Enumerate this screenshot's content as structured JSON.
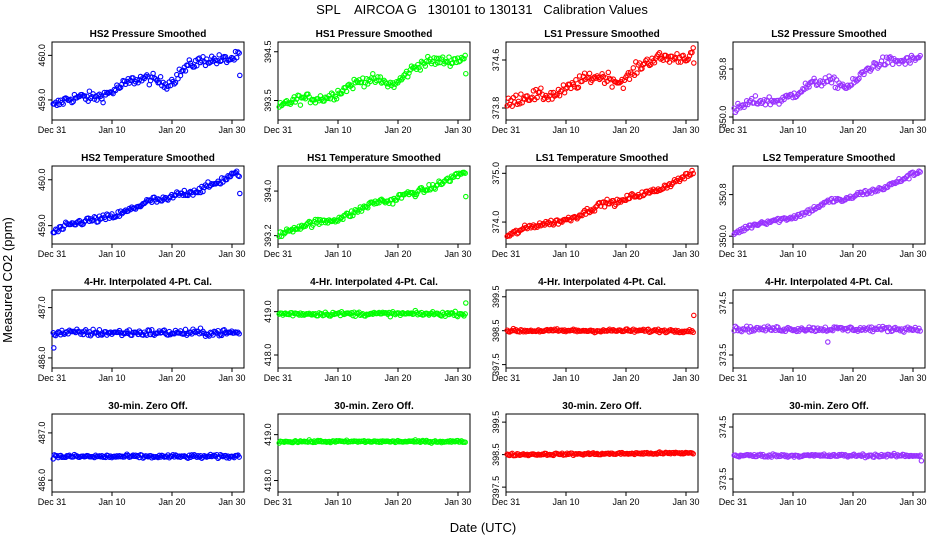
{
  "figure": {
    "title": "SPL    AIRCOA G   130101 to 130131   Calibration Values",
    "xlabel": "Date (UTC)",
    "ylabel": "Measured CO2 (ppm)"
  },
  "chart_data": [
    {
      "type": "scatter",
      "title": "HS2 Pressure Smoothed",
      "color": "#0000ff",
      "start": 458.85,
      "end": 460.05,
      "noise": 0.12,
      "ylim": [
        458.55,
        460.3
      ],
      "yticks": [
        "459.0",
        "460.0"
      ],
      "ytickvals": [
        459.0,
        460.0
      ],
      "xticks": [
        "Dec 31",
        "Jan 10",
        "Jan 20",
        "Jan 30"
      ],
      "xtickvals": [
        0,
        10,
        20,
        30
      ],
      "xlim": [
        0,
        32
      ],
      "shape": "pressure",
      "outliers": [
        [
          31.3,
          459.55
        ]
      ]
    },
    {
      "type": "scatter",
      "title": "HS1 Pressure Smoothed",
      "color": "#00ff00",
      "start": 393.35,
      "end": 394.45,
      "noise": 0.1,
      "ylim": [
        393.1,
        394.7
      ],
      "yticks": [
        "393.5",
        "394.5"
      ],
      "ytickvals": [
        393.5,
        394.5
      ],
      "xticks": [
        "Dec 31",
        "Jan 10",
        "Jan 20",
        "Jan 30"
      ],
      "xtickvals": [
        0,
        10,
        20,
        30
      ],
      "xlim": [
        0,
        32
      ],
      "shape": "pressure",
      "outliers": [
        [
          31.3,
          394.05
        ]
      ]
    },
    {
      "type": "scatter",
      "title": "LS1 Pressure Smoothed",
      "color": "#ff0000",
      "start": 373.85,
      "end": 374.75,
      "noise": 0.1,
      "ylim": [
        373.6,
        374.9
      ],
      "yticks": [
        "373.8",
        "374.6"
      ],
      "ytickvals": [
        373.8,
        374.6
      ],
      "xticks": [
        "Dec 31",
        "Jan 10",
        "Jan 20",
        "Jan 30"
      ],
      "xtickvals": [
        0,
        10,
        20,
        30
      ],
      "xlim": [
        0,
        32
      ],
      "shape": "pressure",
      "outliers": [
        [
          31.3,
          374.55
        ]
      ]
    },
    {
      "type": "scatter",
      "title": "LS2 Pressure Smoothed",
      "color": "#9933ff",
      "start": 350.1,
      "end": 351.05,
      "noise": 0.08,
      "ylim": [
        349.95,
        351.25
      ],
      "yticks": [
        "350.0",
        "350.8"
      ],
      "ytickvals": [
        350.0,
        350.8
      ],
      "xticks": [
        "Dec 31",
        "Jan 10",
        "Jan 20",
        "Jan 30"
      ],
      "xtickvals": [
        0,
        10,
        20,
        30
      ],
      "xlim": [
        0,
        32
      ],
      "shape": "pressure",
      "outliers": []
    },
    {
      "type": "scatter",
      "title": "HS2 Temperature Smoothed",
      "color": "#0000ff",
      "start": 458.85,
      "end": 460.1,
      "noise": 0.08,
      "ylim": [
        458.6,
        460.3
      ],
      "yticks": [
        "459.0",
        "460.0"
      ],
      "ytickvals": [
        459.0,
        460.0
      ],
      "xticks": [
        "Dec 31",
        "Jan 10",
        "Jan 20",
        "Jan 30"
      ],
      "xtickvals": [
        0,
        10,
        20,
        30
      ],
      "xlim": [
        0,
        32
      ],
      "shape": "temp",
      "outliers": [
        [
          31.3,
          459.7
        ]
      ]
    },
    {
      "type": "scatter",
      "title": "HS1 Temperature Smoothed",
      "color": "#00ff00",
      "start": 393.2,
      "end": 394.3,
      "noise": 0.06,
      "ylim": [
        393.05,
        394.45
      ],
      "yticks": [
        "393.2",
        "394.0"
      ],
      "ytickvals": [
        393.2,
        394.0
      ],
      "xticks": [
        "Dec 31",
        "Jan 10",
        "Jan 20",
        "Jan 30"
      ],
      "xtickvals": [
        0,
        10,
        20,
        30
      ],
      "xlim": [
        0,
        32
      ],
      "shape": "temp",
      "outliers": [
        [
          31.3,
          393.9
        ]
      ]
    },
    {
      "type": "scatter",
      "title": "LS1 Temperature Smoothed",
      "color": "#ff0000",
      "start": 373.7,
      "end": 374.95,
      "noise": 0.06,
      "ylim": [
        373.55,
        375.15
      ],
      "yticks": [
        "374.0",
        "375.0"
      ],
      "ytickvals": [
        374.0,
        375.0
      ],
      "xticks": [
        "Dec 31",
        "Jan 10",
        "Jan 20",
        "Jan 30"
      ],
      "xtickvals": [
        0,
        10,
        20,
        30
      ],
      "xlim": [
        0,
        32
      ],
      "shape": "temp",
      "outliers": []
    },
    {
      "type": "scatter",
      "title": "LS2 Temperature Smoothed",
      "color": "#9933ff",
      "start": 350.05,
      "end": 351.2,
      "noise": 0.05,
      "ylim": [
        349.85,
        351.35
      ],
      "yticks": [
        "350.0",
        "350.8"
      ],
      "ytickvals": [
        350.0,
        350.8
      ],
      "xticks": [
        "Dec 31",
        "Jan 10",
        "Jan 20",
        "Jan 30"
      ],
      "xtickvals": [
        0,
        10,
        20,
        30
      ],
      "xlim": [
        0,
        32
      ],
      "shape": "temp",
      "outliers": []
    },
    {
      "type": "scatter",
      "title": "4-Hr. Interpolated 4-Pt. Cal.",
      "color": "#0000ff",
      "start": 486.5,
      "end": 486.5,
      "noise": 0.07,
      "ylim": [
        485.8,
        487.35
      ],
      "yticks": [
        "486.0",
        "487.0"
      ],
      "ytickvals": [
        486.0,
        487.0
      ],
      "xticks": [
        "Dec 31",
        "Jan 10",
        "Jan 20",
        "Jan 30"
      ],
      "xtickvals": [
        0,
        10,
        20,
        30
      ],
      "xlim": [
        0,
        32
      ],
      "shape": "flat",
      "outliers": [
        [
          0.3,
          486.2
        ]
      ]
    },
    {
      "type": "scatter",
      "title": "4-Hr. Interpolated 4-Pt. Cal.",
      "color": "#00ff00",
      "start": 418.95,
      "end": 418.95,
      "noise": 0.05,
      "ylim": [
        417.7,
        419.5
      ],
      "yticks": [
        "418.0",
        "419.0"
      ],
      "ytickvals": [
        418.0,
        419.0
      ],
      "xticks": [
        "Dec 31",
        "Jan 10",
        "Jan 20",
        "Jan 30"
      ],
      "xtickvals": [
        0,
        10,
        20,
        30
      ],
      "xlim": [
        0,
        32
      ],
      "shape": "flat",
      "outliers": [
        [
          31.3,
          419.2
        ]
      ]
    },
    {
      "type": "scatter",
      "title": "4-Hr. Interpolated 4-Pt. Cal.",
      "color": "#ff0000",
      "start": 398.5,
      "end": 398.5,
      "noise": 0.05,
      "ylim": [
        397.4,
        399.7
      ],
      "yticks": [
        "397.5",
        "398.5",
        "399.5"
      ],
      "ytickvals": [
        397.5,
        398.5,
        399.5
      ],
      "xticks": [
        "Dec 31",
        "Jan 10",
        "Jan 20",
        "Jan 30"
      ],
      "xtickvals": [
        0,
        10,
        20,
        30
      ],
      "xlim": [
        0,
        32
      ],
      "shape": "flat",
      "outliers": [
        [
          31.3,
          398.95
        ]
      ]
    },
    {
      "type": "scatter",
      "title": "4-Hr. Interpolated 4-Pt. Cal.",
      "color": "#9933ff",
      "start": 374.0,
      "end": 374.0,
      "noise": 0.05,
      "ylim": [
        373.25,
        374.75
      ],
      "yticks": [
        "373.5",
        "374.5"
      ],
      "ytickvals": [
        373.5,
        374.5
      ],
      "xticks": [
        "Dec 31",
        "Jan 10",
        "Jan 20",
        "Jan 30"
      ],
      "xtickvals": [
        0,
        10,
        20,
        30
      ],
      "xlim": [
        0,
        32
      ],
      "shape": "flat",
      "outliers": [
        [
          15.8,
          373.75
        ]
      ]
    },
    {
      "type": "scatter",
      "title": "30-min. Zero Off.",
      "color": "#0000ff",
      "start": 486.5,
      "end": 486.5,
      "noise": 0.04,
      "ylim": [
        485.75,
        487.4
      ],
      "yticks": [
        "486.0",
        "487.0"
      ],
      "ytickvals": [
        486.0,
        487.0
      ],
      "xticks": [
        "Dec 31",
        "Jan 10",
        "Jan 20",
        "Jan 30"
      ],
      "xtickvals": [
        0,
        10,
        20,
        30
      ],
      "xlim": [
        0,
        32
      ],
      "shape": "flat",
      "outliers": []
    },
    {
      "type": "scatter",
      "title": "30-min. Zero Off.",
      "color": "#00ff00",
      "start": 418.85,
      "end": 418.85,
      "noise": 0.025,
      "ylim": [
        417.75,
        419.45
      ],
      "yticks": [
        "418.0",
        "419.0"
      ],
      "ytickvals": [
        418.0,
        419.0
      ],
      "xticks": [
        "Dec 31",
        "Jan 10",
        "Jan 20",
        "Jan 30"
      ],
      "xtickvals": [
        0,
        10,
        20,
        30
      ],
      "xlim": [
        0,
        32
      ],
      "shape": "flat",
      "outliers": []
    },
    {
      "type": "scatter",
      "title": "30-min. Zero Off.",
      "color": "#ff0000",
      "start": 398.5,
      "end": 398.55,
      "noise": 0.035,
      "ylim": [
        397.35,
        399.75
      ],
      "yticks": [
        "397.5",
        "398.5",
        "399.5"
      ],
      "ytickvals": [
        397.5,
        398.5,
        399.5
      ],
      "xticks": [
        "Dec 31",
        "Jan 10",
        "Jan 20",
        "Jan 30"
      ],
      "xtickvals": [
        0,
        10,
        20,
        30
      ],
      "xlim": [
        0,
        32
      ],
      "shape": "flat",
      "outliers": []
    },
    {
      "type": "scatter",
      "title": "30-min. Zero Off.",
      "color": "#9933ff",
      "start": 373.95,
      "end": 373.95,
      "noise": 0.03,
      "ylim": [
        373.25,
        374.75
      ],
      "yticks": [
        "373.5",
        "374.5"
      ],
      "ytickvals": [
        373.5,
        374.5
      ],
      "xticks": [
        "Dec 31",
        "Jan 10",
        "Jan 20",
        "Jan 30"
      ],
      "xtickvals": [
        0,
        10,
        20,
        30
      ],
      "xlim": [
        0,
        32
      ],
      "shape": "flat",
      "outliers": [
        [
          31.4,
          373.85
        ]
      ]
    }
  ]
}
